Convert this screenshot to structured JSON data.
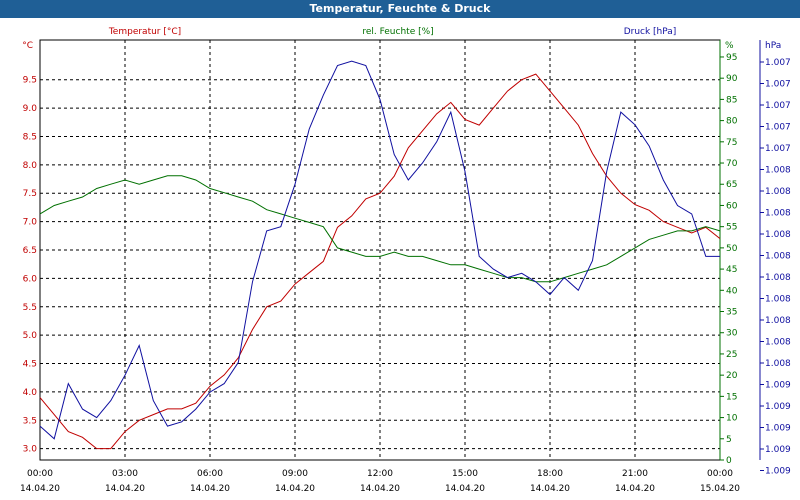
{
  "window": {
    "title": "Temperatur, Feuchte & Druck"
  },
  "chart_data": {
    "type": "line",
    "title": "Temperatur, Feuchte & Druck",
    "grid": true,
    "x_ticks": [
      {
        "time": "00:00",
        "date": "14.04.20"
      },
      {
        "time": "03:00",
        "date": "14.04.20"
      },
      {
        "time": "06:00",
        "date": "14.04.20"
      },
      {
        "time": "09:00",
        "date": "14.04.20"
      },
      {
        "time": "12:00",
        "date": "14.04.20"
      },
      {
        "time": "15:00",
        "date": "14.04.20"
      },
      {
        "time": "18:00",
        "date": "14.04.20"
      },
      {
        "time": "21:00",
        "date": "14.04.20"
      },
      {
        "time": "00:00",
        "date": "15.04.20"
      }
    ],
    "xlim_hours": [
      0,
      24
    ],
    "axes": {
      "temperature": {
        "label": "Temperatur [°C]",
        "unit": "°C",
        "color": "#c00000",
        "ylim": [
          2.8,
          10.2
        ],
        "ticks": [
          "3.0",
          "3.5",
          "4.0",
          "4.5",
          "5.0",
          "5.5",
          "6.0",
          "6.5",
          "7.0",
          "7.5",
          "8.0",
          "8.5",
          "9.0",
          "9.5"
        ]
      },
      "humidity": {
        "label": "rel. Feuchte [%]",
        "unit": "%",
        "color": "#007000",
        "ylim": [
          0,
          99
        ],
        "ticks": [
          "0",
          "5",
          "10",
          "15",
          "20",
          "25",
          "30",
          "35",
          "40",
          "45",
          "50",
          "55",
          "60",
          "65",
          "70",
          "75",
          "80",
          "85",
          "90",
          "95"
        ]
      },
      "pressure": {
        "label": "Druck [hPa]",
        "unit": "hPa",
        "color": "#1010a0",
        "ticks": [
          "1.007",
          "1.007",
          "1.007",
          "1.007",
          "1.007",
          "1.008",
          "1.008",
          "1.008",
          "1.008",
          "1.008",
          "1.008",
          "1.008",
          "1.008",
          "1.008",
          "1.008",
          "1.009",
          "1.009",
          "1.009",
          "1.009",
          "1.009"
        ]
      }
    },
    "series": [
      {
        "name": "Temperatur [°C]",
        "axis": "temperature",
        "color": "#c00000",
        "x": [
          0,
          0.5,
          1,
          1.5,
          2,
          2.5,
          3,
          3.5,
          4,
          4.5,
          5,
          5.5,
          6,
          6.5,
          7,
          7.5,
          8,
          8.5,
          9,
          9.5,
          10,
          10.5,
          11,
          11.5,
          12,
          12.5,
          13,
          13.5,
          14,
          14.5,
          15,
          15.5,
          16,
          16.5,
          17,
          17.5,
          18,
          18.5,
          19,
          19.5,
          20,
          20.5,
          21,
          21.5,
          22,
          22.5,
          23,
          23.5,
          24
        ],
        "values": [
          3.9,
          3.6,
          3.3,
          3.2,
          3.0,
          3.0,
          3.3,
          3.5,
          3.6,
          3.7,
          3.7,
          3.8,
          4.1,
          4.3,
          4.6,
          5.1,
          5.5,
          5.6,
          5.9,
          6.1,
          6.3,
          6.9,
          7.1,
          7.4,
          7.5,
          7.8,
          8.3,
          8.6,
          8.9,
          9.1,
          8.8,
          8.7,
          9.0,
          9.3,
          9.5,
          9.6,
          9.3,
          9.0,
          8.7,
          8.2,
          7.8,
          7.5,
          7.3,
          7.2,
          7.0,
          6.9,
          6.8,
          6.9,
          6.7
        ]
      },
      {
        "name": "rel. Feuchte [%]",
        "axis": "humidity",
        "color": "#007000",
        "x": [
          0,
          0.5,
          1,
          1.5,
          2,
          2.5,
          3,
          3.5,
          4,
          4.5,
          5,
          5.5,
          6,
          6.5,
          7,
          7.5,
          8,
          8.5,
          9,
          9.5,
          10,
          10.5,
          11,
          11.5,
          12,
          12.5,
          13,
          13.5,
          14,
          14.5,
          15,
          15.5,
          16,
          16.5,
          17,
          17.5,
          18,
          18.5,
          19,
          19.5,
          20,
          20.5,
          21,
          21.5,
          22,
          22.5,
          23,
          23.5,
          24
        ],
        "values": [
          58,
          60,
          61,
          62,
          64,
          65,
          66,
          65,
          66,
          67,
          67,
          66,
          64,
          63,
          62,
          61,
          59,
          58,
          57,
          56,
          55,
          50,
          49,
          48,
          48,
          49,
          48,
          48,
          47,
          46,
          46,
          45,
          44,
          43,
          43,
          42,
          42,
          43,
          44,
          45,
          46,
          48,
          50,
          52,
          53,
          54,
          54,
          55,
          54
        ]
      },
      {
        "name": "Druck [hPa]",
        "axis": "pressure",
        "color": "#1010a0",
        "x": [
          0,
          0.5,
          1,
          1.5,
          2,
          2.5,
          3,
          3.5,
          4,
          4.5,
          5,
          5.5,
          6,
          6.5,
          7,
          7.5,
          8,
          8.5,
          9,
          9.5,
          10,
          10.5,
          11,
          11.5,
          12,
          12.5,
          13,
          13.5,
          14,
          14.5,
          15,
          15.5,
          16,
          16.5,
          17,
          17.5,
          18,
          18.5,
          19,
          19.5,
          20,
          20.5,
          21,
          21.5,
          22,
          22.5,
          23,
          23.5,
          24
        ],
        "values": [
          8,
          5,
          18,
          12,
          10,
          14,
          20,
          27,
          14,
          8,
          9,
          12,
          16,
          18,
          23,
          42,
          54,
          55,
          65,
          78,
          86,
          93,
          94,
          93,
          85,
          72,
          66,
          70,
          75,
          82,
          68,
          48,
          45,
          43,
          44,
          42,
          39,
          43,
          40,
          47,
          68,
          82,
          79,
          74,
          66,
          60,
          58,
          48,
          48
        ],
        "relative_scale": [
          0,
          99
        ]
      }
    ]
  }
}
